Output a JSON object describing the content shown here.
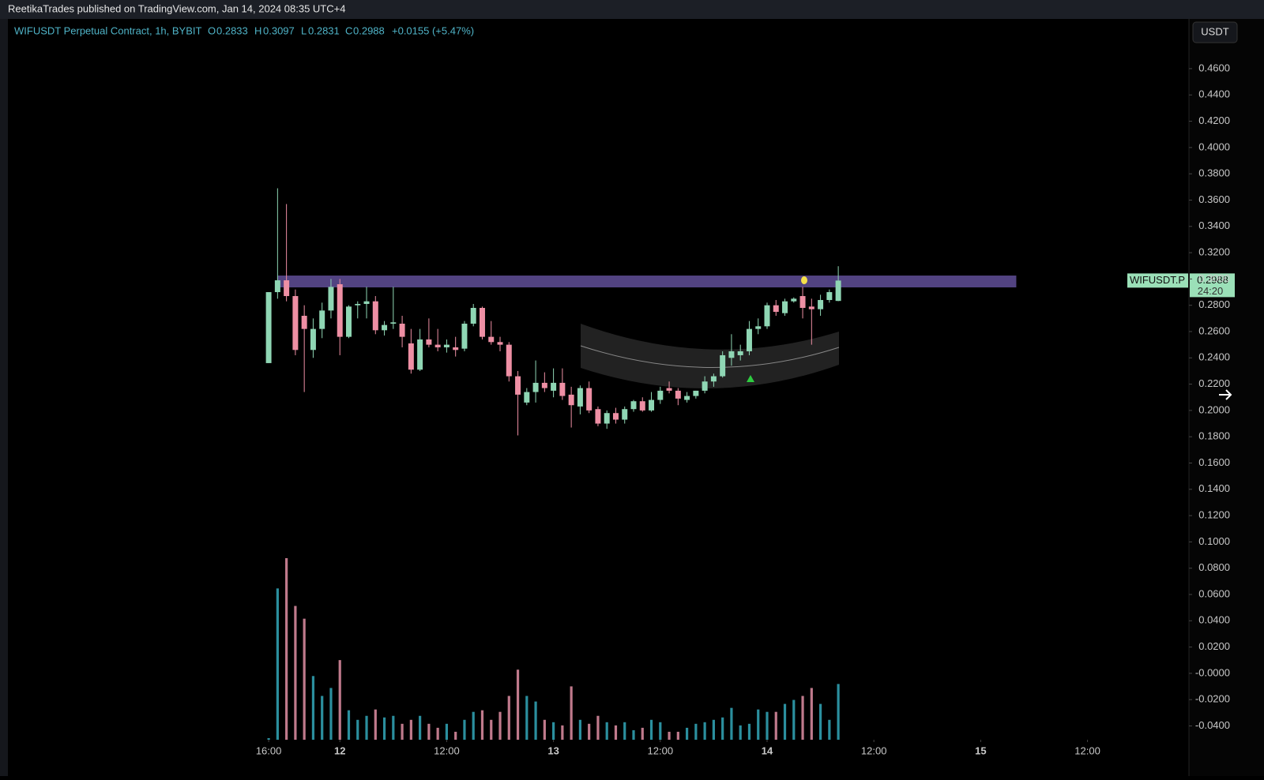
{
  "header": {
    "publisher": "ReetikaTrades published on TradingView.com, Jan 14, 2024 08:35 UTC+4"
  },
  "legend": {
    "symbol": "WIFUSDT Perpetual Contract, 1h, BYBIT",
    "o_label": "O",
    "o": "0.2833",
    "h_label": "H",
    "h": "0.3097",
    "l_label": "L",
    "l": "0.2831",
    "c_label": "C",
    "c": "0.2988",
    "change": "+0.0155 (+5.47%)"
  },
  "currency": "USDT",
  "price_tag": {
    "symbol": "WIFUSDT.P",
    "price": "0.2988",
    "countdown": "24:20"
  },
  "chart_data": {
    "type": "candlestick",
    "categories": [
      null,
      null,
      null,
      null,
      null,
      null,
      null,
      null,
      null,
      null,
      null,
      null,
      null,
      null,
      null,
      null,
      null,
      null,
      null,
      null,
      null,
      null,
      null,
      null,
      null,
      null,
      null,
      null,
      null,
      null,
      null,
      null,
      null,
      null,
      null,
      null,
      null,
      null,
      null,
      null,
      null,
      null,
      null,
      null,
      null,
      null,
      null,
      null,
      null,
      null,
      null,
      null,
      null,
      null,
      null,
      null,
      null,
      null,
      null,
      null,
      null,
      null,
      null,
      null,
      null
    ],
    "open": [
      0.236,
      0.29,
      0.299,
      0.287,
      0.272,
      0.246,
      0.262,
      0.276,
      0.296,
      0.256,
      0.28,
      0.281,
      0.283,
      0.261,
      0.266,
      0.266,
      0.251,
      0.231,
      0.254,
      0.25,
      0.248,
      0.248,
      0.247,
      0.266,
      0.278,
      0.256,
      0.252,
      0.25,
      0.226,
      0.206,
      0.214,
      0.221,
      0.215,
      0.221,
      0.212,
      0.203,
      0.217,
      0.201,
      0.19,
      0.198,
      0.193,
      0.201,
      0.207,
      0.2,
      0.208,
      0.217,
      0.215,
      0.208,
      0.211,
      0.215,
      0.222,
      0.226,
      0.24,
      0.242,
      0.245,
      0.262,
      0.264,
      0.28,
      0.274,
      0.283,
      0.287,
      0.279,
      0.277,
      0.284,
      0.2833
    ],
    "high": [
      0.29,
      0.369,
      0.357,
      0.292,
      0.28,
      0.27,
      0.282,
      0.3,
      0.3,
      0.28,
      0.283,
      0.294,
      0.287,
      0.268,
      0.294,
      0.272,
      0.262,
      0.262,
      0.27,
      0.262,
      0.254,
      0.256,
      0.268,
      0.281,
      0.279,
      0.268,
      0.256,
      0.252,
      0.23,
      0.217,
      0.238,
      0.229,
      0.232,
      0.232,
      0.218,
      0.219,
      0.222,
      0.203,
      0.2,
      0.202,
      0.203,
      0.208,
      0.21,
      0.214,
      0.218,
      0.222,
      0.217,
      0.214,
      0.215,
      0.226,
      0.228,
      0.245,
      0.258,
      0.25,
      0.268,
      0.27,
      0.282,
      0.284,
      0.285,
      0.286,
      0.294,
      0.285,
      0.288,
      0.292,
      0.3097
    ],
    "low": [
      0.236,
      0.285,
      0.283,
      0.242,
      0.214,
      0.24,
      0.255,
      0.27,
      0.242,
      0.255,
      0.27,
      0.27,
      0.258,
      0.257,
      0.262,
      0.248,
      0.228,
      0.23,
      0.248,
      0.245,
      0.244,
      0.241,
      0.245,
      0.264,
      0.254,
      0.25,
      0.245,
      0.222,
      0.181,
      0.204,
      0.206,
      0.214,
      0.21,
      0.208,
      0.187,
      0.197,
      0.198,
      0.188,
      0.186,
      0.19,
      0.19,
      0.199,
      0.199,
      0.199,
      0.205,
      0.213,
      0.204,
      0.206,
      0.209,
      0.213,
      0.218,
      0.225,
      0.234,
      0.238,
      0.242,
      0.258,
      0.262,
      0.272,
      0.272,
      0.282,
      0.27,
      0.25,
      0.272,
      0.282,
      0.2831
    ],
    "close": [
      0.29,
      0.299,
      0.287,
      0.246,
      0.262,
      0.262,
      0.276,
      0.294,
      0.256,
      0.279,
      0.281,
      0.283,
      0.261,
      0.265,
      0.267,
      0.256,
      0.231,
      0.254,
      0.25,
      0.248,
      0.25,
      0.246,
      0.266,
      0.278,
      0.256,
      0.252,
      0.25,
      0.226,
      0.212,
      0.214,
      0.221,
      0.217,
      0.221,
      0.211,
      0.204,
      0.217,
      0.2,
      0.19,
      0.198,
      0.193,
      0.201,
      0.207,
      0.2,
      0.208,
      0.215,
      0.215,
      0.209,
      0.211,
      0.215,
      0.222,
      0.226,
      0.242,
      0.245,
      0.245,
      0.262,
      0.264,
      0.28,
      0.275,
      0.283,
      0.285,
      0.278,
      0.277,
      0.284,
      0.29,
      0.2988
    ],
    "volume": [
      2,
      190,
      228,
      168,
      152,
      80,
      55,
      65,
      100,
      37,
      25,
      30,
      38,
      28,
      30,
      20,
      25,
      30,
      20,
      15,
      20,
      10,
      25,
      35,
      37,
      25,
      35,
      55,
      88,
      55,
      48,
      25,
      22,
      18,
      67,
      25,
      20,
      30,
      22,
      18,
      22,
      12,
      15,
      25,
      22,
      10,
      10,
      15,
      20,
      22,
      25,
      28,
      40,
      18,
      20,
      38,
      35,
      35,
      45,
      50,
      55,
      65,
      45,
      25,
      70
    ],
    "up_color": "#8fd6b4",
    "down_color": "#ee8fa4",
    "vol_up_color": "#2b8f9e",
    "vol_down_color": "#c07a8c",
    "zone": {
      "from": 1,
      "to": 84,
      "low": 0.2936,
      "high": 0.3026,
      "color": "#5b4a8f"
    },
    "xlim": [
      -29.3,
      103.4
    ],
    "xticks": [
      {
        "value": 0,
        "label": "16:00"
      },
      {
        "value": 8,
        "label": "12"
      },
      {
        "value": 20,
        "label": "12:00"
      },
      {
        "value": 32,
        "label": "13"
      },
      {
        "value": 44,
        "label": "12:00"
      },
      {
        "value": 56,
        "label": "14"
      },
      {
        "value": 68,
        "label": "12:00"
      },
      {
        "value": 80,
        "label": "15"
      },
      {
        "value": 92,
        "label": "12:00"
      }
    ],
    "ylim": [
      -0.0505,
      0.4972
    ],
    "yticks": [
      {
        "value": 0.46,
        "label": "0.4600"
      },
      {
        "value": 0.44,
        "label": "0.4400"
      },
      {
        "value": 0.42,
        "label": "0.4200"
      },
      {
        "value": 0.4,
        "label": "0.4000"
      },
      {
        "value": 0.38,
        "label": "0.3800"
      },
      {
        "value": 0.36,
        "label": "0.3600"
      },
      {
        "value": 0.34,
        "label": "0.3400"
      },
      {
        "value": 0.32,
        "label": "0.3200"
      },
      {
        "value": 0.3,
        "label": "0.3000"
      },
      {
        "value": 0.28,
        "label": "0.2800"
      },
      {
        "value": 0.26,
        "label": "0.2600"
      },
      {
        "value": 0.24,
        "label": "0.2400"
      },
      {
        "value": 0.22,
        "label": "0.2200"
      },
      {
        "value": 0.2,
        "label": "0.2000"
      },
      {
        "value": 0.18,
        "label": "0.1800"
      },
      {
        "value": 0.16,
        "label": "0.1600"
      },
      {
        "value": 0.14,
        "label": "0.1400"
      },
      {
        "value": 0.12,
        "label": "0.1200"
      },
      {
        "value": 0.1,
        "label": "0.1000"
      },
      {
        "value": 0.08,
        "label": "0.0800"
      },
      {
        "value": 0.06,
        "label": "0.0600"
      },
      {
        "value": 0.04,
        "label": "0.0400"
      },
      {
        "value": 0.02,
        "label": "0.0200"
      },
      {
        "value": 0,
        "label": "-0.0000"
      },
      {
        "value": -0.02,
        "label": "-0.0200"
      },
      {
        "value": -0.04,
        "label": "-0.0400"
      }
    ]
  }
}
